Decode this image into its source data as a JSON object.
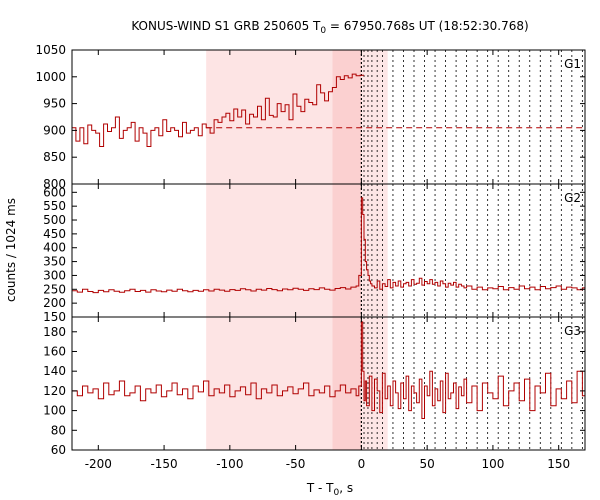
{
  "chart_data": {
    "type": "line",
    "title": "KONUS-WIND S1 GRB 250605 T",
    "title_sub": "0",
    "title_rest": " = 67950.768s UT (18:52:30.768)",
    "ylabel": "counts / 1024 ms",
    "xlabel_main": "T - T",
    "xlabel_sub": "0",
    "xlabel_rest": ", s",
    "xlim": [
      -220,
      170
    ],
    "x_ticks": [
      -200,
      -150,
      -100,
      -50,
      0,
      50,
      100,
      150
    ],
    "x_tick_labels": [
      "-200",
      "-150",
      "-100",
      "-50",
      "0",
      "50",
      "100",
      "150"
    ],
    "shaded_regions": [
      {
        "x0": -118,
        "x1": -22,
        "color": "#fde4e4"
      },
      {
        "x0": -22,
        "x1": 0,
        "color": "#fbd0d0"
      },
      {
        "x0": 0,
        "x1": 20,
        "color": "#fde6e6"
      }
    ],
    "dotted_lines_x": [
      0,
      2,
      5,
      8,
      12,
      16,
      24,
      32,
      40,
      48,
      56,
      64,
      72,
      80,
      88,
      96,
      104,
      112,
      120,
      128,
      136,
      144,
      152,
      160,
      168
    ],
    "line_color": "#b00000",
    "panels": [
      {
        "name": "G1",
        "ylim": [
          800,
          1050
        ],
        "y_ticks": [
          800,
          850,
          900,
          950,
          1000,
          1050
        ],
        "y_tick_labels": [
          "800",
          "850",
          "900",
          "950",
          "1000",
          "1050"
        ],
        "background_level": 905,
        "step_dt": 3,
        "x": [
          -220,
          -217,
          -214,
          -211,
          -208,
          -205,
          -202,
          -199,
          -196,
          -193,
          -190,
          -187,
          -184,
          -181,
          -178,
          -175,
          -172,
          -169,
          -166,
          -163,
          -160,
          -157,
          -154,
          -151,
          -148,
          -145,
          -142,
          -139,
          -136,
          -133,
          -130,
          -127,
          -124,
          -121,
          -118,
          -115,
          -112,
          -109,
          -106,
          -103,
          -100,
          -97,
          -94,
          -91,
          -88,
          -85,
          -82,
          -79,
          -76,
          -73,
          -70,
          -67,
          -64,
          -61,
          -58,
          -55,
          -52,
          -49,
          -46,
          -43,
          -40,
          -37,
          -34,
          -31,
          -28,
          -25,
          -22,
          -19,
          -16,
          -13,
          -10,
          -7,
          -4,
          -1
        ],
        "y": [
          905,
          880,
          905,
          875,
          910,
          900,
          895,
          870,
          912,
          898,
          905,
          925,
          885,
          900,
          905,
          915,
          880,
          905,
          895,
          870,
          900,
          905,
          890,
          920,
          898,
          905,
          900,
          888,
          915,
          895,
          900,
          905,
          890,
          912,
          905,
          895,
          920,
          915,
          925,
          932,
          918,
          940,
          925,
          938,
          912,
          930,
          925,
          945,
          920,
          960,
          928,
          925,
          950,
          935,
          948,
          920,
          968,
          945,
          935,
          958,
          952,
          948,
          985,
          970,
          955,
          972,
          980,
          1000,
          995,
          1002,
          998,
          1005,
          1002,
          1003
        ]
      },
      {
        "name": "G2",
        "ylim": [
          150,
          630
        ],
        "y_ticks": [
          150,
          200,
          250,
          300,
          350,
          400,
          450,
          500,
          550,
          600
        ],
        "y_tick_labels": [
          "150",
          "200",
          "250",
          "300",
          "350",
          "400",
          "450",
          "500",
          "550",
          "600"
        ],
        "step_dt": 2,
        "x": [
          -220,
          -216,
          -212,
          -208,
          -204,
          -200,
          -196,
          -192,
          -188,
          -184,
          -180,
          -176,
          -172,
          -168,
          -164,
          -160,
          -156,
          -152,
          -148,
          -144,
          -140,
          -136,
          -132,
          -128,
          -124,
          -120,
          -116,
          -112,
          -108,
          -104,
          -100,
          -96,
          -92,
          -88,
          -84,
          -80,
          -76,
          -72,
          -68,
          -64,
          -60,
          -56,
          -52,
          -48,
          -44,
          -40,
          -36,
          -32,
          -28,
          -24,
          -20,
          -16,
          -12,
          -8,
          -4,
          -2,
          0,
          1,
          2,
          3,
          4,
          5,
          6,
          7,
          8,
          10,
          12,
          14,
          16,
          18,
          20,
          22,
          24,
          26,
          28,
          30,
          32,
          34,
          36,
          38,
          40,
          42,
          44,
          46,
          48,
          50,
          52,
          54,
          56,
          58,
          60,
          62,
          64,
          66,
          68,
          70,
          72,
          74,
          76,
          78,
          80,
          84,
          88,
          92,
          96,
          100,
          104,
          108,
          112,
          116,
          120,
          124,
          128,
          132,
          136,
          140,
          144,
          148,
          152,
          156,
          160,
          164,
          168
        ],
        "y": [
          245,
          240,
          250,
          242,
          238,
          246,
          241,
          248,
          243,
          239,
          245,
          250,
          242,
          246,
          240,
          248,
          244,
          241,
          247,
          243,
          250,
          245,
          241,
          246,
          243,
          248,
          244,
          250,
          247,
          243,
          249,
          246,
          252,
          248,
          244,
          250,
          247,
          253,
          249,
          245,
          251,
          248,
          254,
          250,
          246,
          252,
          249,
          255,
          250,
          247,
          253,
          256,
          251,
          258,
          262,
          300,
          580,
          520,
          430,
          350,
          320,
          300,
          280,
          270,
          262,
          255,
          280,
          250,
          270,
          260,
          285,
          255,
          275,
          262,
          280,
          258,
          270,
          275,
          262,
          285,
          268,
          272,
          290,
          265,
          278,
          270,
          285,
          268,
          275,
          262,
          280,
          270,
          258,
          272,
          265,
          275,
          258,
          268,
          262,
          255,
          262,
          250,
          258,
          248,
          255,
          252,
          260,
          248,
          256,
          250,
          262,
          252,
          258,
          248,
          260,
          252,
          256,
          262,
          250,
          258,
          255,
          248,
          255
        ]
      },
      {
        "name": "G3",
        "ylim": [
          60,
          195
        ],
        "y_ticks": [
          60,
          80,
          100,
          120,
          140,
          160,
          180
        ],
        "y_tick_labels": [
          "60",
          "80",
          "100",
          "120",
          "140",
          "160",
          "180"
        ],
        "step_dt": 2,
        "x": [
          -220,
          -216,
          -212,
          -208,
          -204,
          -200,
          -196,
          -192,
          -188,
          -184,
          -180,
          -176,
          -172,
          -168,
          -164,
          -160,
          -156,
          -152,
          -148,
          -144,
          -140,
          -136,
          -132,
          -128,
          -124,
          -120,
          -116,
          -112,
          -108,
          -104,
          -100,
          -96,
          -92,
          -88,
          -84,
          -80,
          -76,
          -72,
          -68,
          -64,
          -60,
          -56,
          -52,
          -48,
          -44,
          -40,
          -36,
          -32,
          -28,
          -24,
          -20,
          -16,
          -12,
          -8,
          -4,
          -2,
          0,
          1,
          2,
          3,
          4,
          6,
          8,
          10,
          12,
          14,
          16,
          18,
          20,
          22,
          24,
          26,
          28,
          30,
          32,
          34,
          36,
          38,
          40,
          42,
          44,
          46,
          48,
          50,
          52,
          54,
          56,
          58,
          60,
          62,
          64,
          66,
          68,
          70,
          72,
          74,
          76,
          78,
          80,
          84,
          88,
          92,
          96,
          100,
          104,
          108,
          112,
          116,
          120,
          124,
          128,
          132,
          136,
          140,
          144,
          148,
          152,
          156,
          160,
          164,
          168
        ],
        "y": [
          120,
          115,
          125,
          118,
          122,
          112,
          128,
          116,
          120,
          130,
          115,
          118,
          125,
          110,
          122,
          118,
          126,
          114,
          120,
          128,
          116,
          122,
          112,
          125,
          119,
          130,
          115,
          122,
          118,
          126,
          114,
          120,
          124,
          116,
          128,
          112,
          122,
          118,
          126,
          115,
          120,
          124,
          117,
          122,
          128,
          115,
          121,
          118,
          125,
          114,
          120,
          126,
          118,
          122,
          115,
          125,
          190,
          140,
          110,
          130,
          105,
          135,
          100,
          132,
          120,
          98,
          138,
          112,
          125,
          105,
          130,
          118,
          102,
          128,
          112,
          135,
          100,
          125,
          118,
          108,
          132,
          92,
          125,
          115,
          140,
          105,
          122,
          110,
          130,
          98,
          138,
          112,
          118,
          128,
          102,
          124,
          115,
          132,
          108,
          125,
          100,
          128,
          118,
          112,
          135,
          105,
          120,
          128,
          110,
          132,
          100,
          125,
          118,
          138,
          105,
          122,
          112,
          130,
          108,
          140,
          115
        ]
      }
    ]
  }
}
